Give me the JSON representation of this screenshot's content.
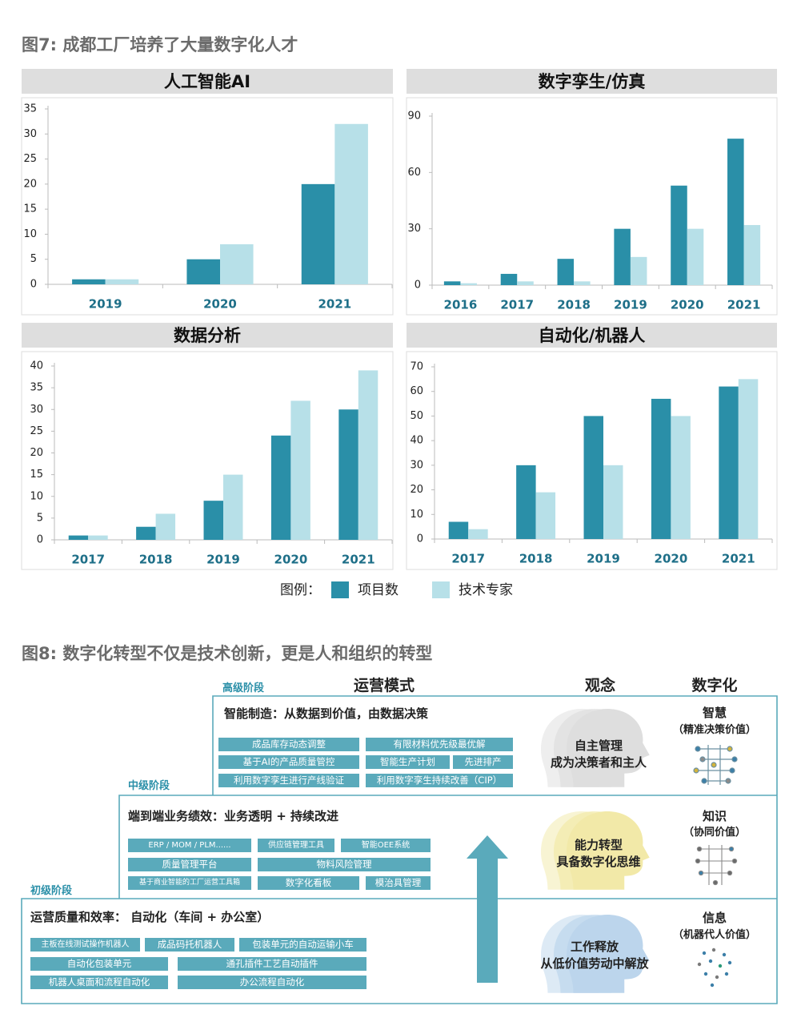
{
  "figure7_title": "图7: 成都工厂培养了大量数字化人才",
  "legend_title": "图例：",
  "chart_data": [
    {
      "type": "bar",
      "title": "人工智能AI",
      "categories": [
        "2019",
        "2020",
        "2021"
      ],
      "series": [
        {
          "name": "项目数",
          "color": "#2a8fa8",
          "values": [
            1,
            5,
            20
          ]
        },
        {
          "name": "技术专家",
          "color": "#b7e0e8",
          "values": [
            1,
            8,
            32
          ]
        }
      ],
      "ylim": [
        0,
        35
      ],
      "yticks": [
        0,
        5,
        10,
        15,
        20,
        25,
        30,
        35
      ]
    },
    {
      "type": "bar",
      "title": "数字孪生/仿真",
      "categories": [
        "2016",
        "2017",
        "2018",
        "2019",
        "2020",
        "2021"
      ],
      "series": [
        {
          "name": "项目数",
          "color": "#2a8fa8",
          "values": [
            2,
            6,
            14,
            30,
            53,
            78
          ]
        },
        {
          "name": "技术专家",
          "color": "#b7e0e8",
          "values": [
            1,
            2,
            2,
            15,
            30,
            32
          ]
        }
      ],
      "ylim": [
        0,
        90
      ],
      "yticks": [
        0,
        30,
        60,
        90
      ]
    },
    {
      "type": "bar",
      "title": "数据分析",
      "categories": [
        "2017",
        "2018",
        "2019",
        "2020",
        "2021"
      ],
      "series": [
        {
          "name": "项目数",
          "color": "#2a8fa8",
          "values": [
            1,
            3,
            9,
            24,
            30
          ]
        },
        {
          "name": "技术专家",
          "color": "#b7e0e8",
          "values": [
            1,
            6,
            15,
            32,
            39
          ]
        }
      ],
      "ylim": [
        0,
        40
      ],
      "yticks": [
        0,
        5,
        10,
        15,
        20,
        25,
        30,
        35,
        40
      ]
    },
    {
      "type": "bar",
      "title": "自动化/机器人",
      "categories": [
        "2017",
        "2018",
        "2019",
        "2020",
        "2021"
      ],
      "series": [
        {
          "name": "项目数",
          "color": "#2a8fa8",
          "values": [
            7,
            30,
            50,
            57,
            62
          ]
        },
        {
          "name": "技术专家",
          "color": "#b7e0e8",
          "values": [
            4,
            19,
            30,
            50,
            65
          ]
        }
      ],
      "ylim": [
        0,
        70
      ],
      "yticks": [
        0,
        10,
        20,
        30,
        40,
        50,
        60,
        70
      ]
    }
  ],
  "figure8": {
    "title": "图8: 数字化转型不仅是技术创新，更是人和组织的转型",
    "columns": [
      "运营模式",
      "观念",
      "数字化"
    ],
    "stages": [
      {
        "label": "高级阶段",
        "heading": "智能制造：从数据到价值，由数据决策",
        "tags": [
          "成品库存动态调整",
          "有限材料优先级最优解",
          "基于AI的产品质量管控",
          "智能生产计划",
          "先进排产",
          "利用数字孪生进行产线验证",
          "利用数字孪生持续改善（CIP）"
        ],
        "mindset": [
          "自主管理",
          "成为决策者和主人"
        ],
        "digital": [
          "智慧",
          "（精准决策价值）"
        ]
      },
      {
        "label": "中级阶段",
        "heading": "端到端业务绩效：业务透明 + 持续改进",
        "tags": [
          "ERP / MOM / PLM......",
          "供应链管理工具",
          "智能OEE系统",
          "质量管理平台",
          "物料风险管理",
          "基于商业智能的工厂运营工具箱",
          "数字化看板",
          "模治具管理"
        ],
        "mindset": [
          "能力转型",
          "具备数字化思维"
        ],
        "digital": [
          "知识",
          "（协同价值）"
        ]
      },
      {
        "label": "初级阶段",
        "heading": "运营质量和效率： 自动化（车间 + 办公室）",
        "tags": [
          "主板在线测试操作机器人",
          "成品码托机器人",
          "包装单元的自动运输小车",
          "自动化包装单元",
          "通孔插件工艺自动插件",
          "机器人桌面和流程自动化",
          "办公流程自动化"
        ],
        "mindset": [
          "工作释放",
          "从低价值劳动中解放"
        ],
        "digital": [
          "信息",
          "（机器代人价值）"
        ]
      }
    ]
  }
}
